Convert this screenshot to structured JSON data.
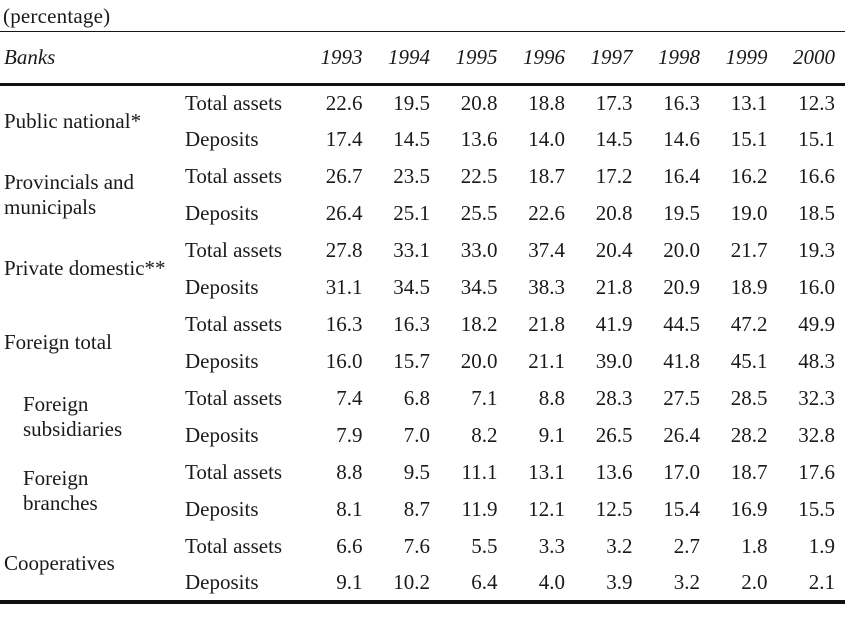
{
  "title": "(percentage)",
  "colors": {
    "background": "#ffffff",
    "text": "#1a1a1a",
    "rule": "#111111"
  },
  "header": {
    "banks_label": "Banks",
    "years": [
      "1993",
      "1994",
      "1995",
      "1996",
      "1997",
      "1998",
      "1999",
      "2000"
    ]
  },
  "groups": [
    {
      "name": "Public national*",
      "indent": false,
      "rows": [
        {
          "metric": "Total assets",
          "values": [
            "22.6",
            "19.5",
            "20.8",
            "18.8",
            "17.3",
            "16.3",
            "13.1",
            "12.3"
          ]
        },
        {
          "metric": "Deposits",
          "values": [
            "17.4",
            "14.5",
            "13.6",
            "14.0",
            "14.5",
            "14.6",
            "15.1",
            "15.1"
          ]
        }
      ]
    },
    {
      "name": "Provincials and\nmunicipals",
      "indent": false,
      "rows": [
        {
          "metric": "Total assets",
          "values": [
            "26.7",
            "23.5",
            "22.5",
            "18.7",
            "17.2",
            "16.4",
            "16.2",
            "16.6"
          ]
        },
        {
          "metric": "Deposits",
          "values": [
            "26.4",
            "25.1",
            "25.5",
            "22.6",
            "20.8",
            "19.5",
            "19.0",
            "18.5"
          ]
        }
      ]
    },
    {
      "name": "Private domestic**",
      "indent": false,
      "rows": [
        {
          "metric": "Total assets",
          "values": [
            "27.8",
            "33.1",
            "33.0",
            "37.4",
            "20.4",
            "20.0",
            "21.7",
            "19.3"
          ]
        },
        {
          "metric": "Deposits",
          "values": [
            "31.1",
            "34.5",
            "34.5",
            "38.3",
            "21.8",
            "20.9",
            "18.9",
            "16.0"
          ]
        }
      ]
    },
    {
      "name": "Foreign total",
      "indent": false,
      "rows": [
        {
          "metric": "Total assets",
          "values": [
            "16.3",
            "16.3",
            "18.2",
            "21.8",
            "41.9",
            "44.5",
            "47.2",
            "49.9"
          ]
        },
        {
          "metric": "Deposits",
          "values": [
            "16.0",
            "15.7",
            "20.0",
            "21.1",
            "39.0",
            "41.8",
            "45.1",
            "48.3"
          ]
        }
      ]
    },
    {
      "name": "Foreign\nsubsidiaries",
      "indent": true,
      "rows": [
        {
          "metric": "Total assets",
          "values": [
            "7.4",
            "6.8",
            "7.1",
            "8.8",
            "28.3",
            "27.5",
            "28.5",
            "32.3"
          ]
        },
        {
          "metric": "Deposits",
          "values": [
            "7.9",
            "7.0",
            "8.2",
            "9.1",
            "26.5",
            "26.4",
            "28.2",
            "32.8"
          ]
        }
      ]
    },
    {
      "name": "Foreign\nbranches",
      "indent": true,
      "rows": [
        {
          "metric": "Total assets",
          "values": [
            "8.8",
            "9.5",
            "11.1",
            "13.1",
            "13.6",
            "17.0",
            "18.7",
            "17.6"
          ]
        },
        {
          "metric": "Deposits",
          "values": [
            "8.1",
            "8.7",
            "11.9",
            "12.1",
            "12.5",
            "15.4",
            "16.9",
            "15.5"
          ]
        }
      ]
    },
    {
      "name": "Cooperatives",
      "indent": false,
      "rows": [
        {
          "metric": "Total assets",
          "values": [
            "6.6",
            "7.6",
            "5.5",
            "3.3",
            "3.2",
            "2.7",
            "1.8",
            "1.9"
          ]
        },
        {
          "metric": "Deposits",
          "values": [
            "9.1",
            "10.2",
            "6.4",
            "4.0",
            "3.9",
            "3.2",
            "2.0",
            "2.1"
          ]
        }
      ]
    }
  ]
}
